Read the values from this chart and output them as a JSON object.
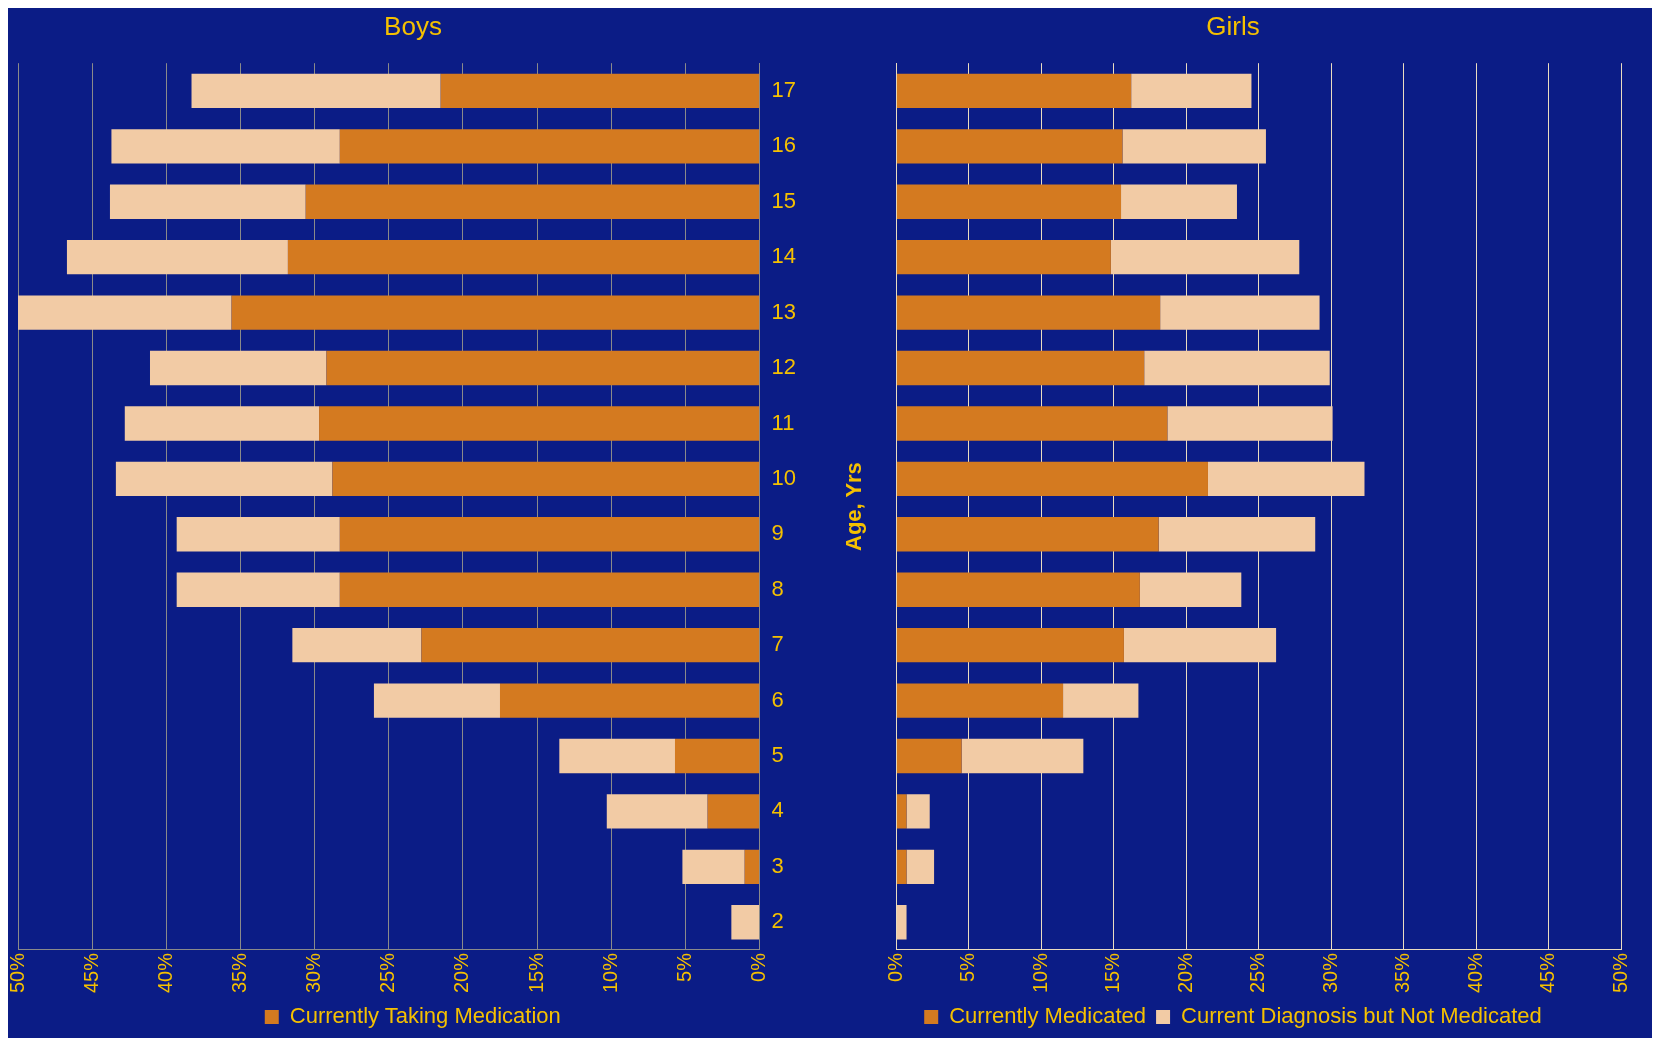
{
  "chart_data": [
    {
      "type": "bar",
      "title": "Boys",
      "orientation": "horizontal",
      "stacked": true,
      "categories": [
        "17",
        "16",
        "15",
        "14",
        "13",
        "12",
        "11",
        "10",
        "9",
        "8",
        "7",
        "6",
        "5",
        "4",
        "3",
        "2"
      ],
      "series": [
        {
          "name": "Currently Taking Medication",
          "color": "#d47a20",
          "values": [
            21.5,
            28.3,
            30.6,
            31.8,
            35.6,
            29.2,
            29.7,
            28.8,
            28.3,
            28.3,
            22.8,
            17.5,
            5.7,
            3.5,
            1.0,
            0
          ]
        },
        {
          "color": "#f2cba5",
          "values": [
            16.8,
            15.4,
            13.2,
            14.9,
            14.4,
            11.9,
            13.1,
            14.6,
            11.0,
            11.0,
            8.7,
            8.5,
            7.8,
            6.8,
            4.2,
            1.9
          ]
        }
      ],
      "xlim": [
        50,
        0
      ],
      "xticks": [
        {
          "value": 50,
          "label": "50%"
        },
        {
          "value": 45,
          "label": "45%"
        },
        {
          "value": 40,
          "label": "40%"
        },
        {
          "value": 35,
          "label": "35%"
        },
        {
          "value": 30,
          "label": "30%"
        },
        {
          "value": 25,
          "label": "25%"
        },
        {
          "value": 20,
          "label": "20%"
        },
        {
          "value": 15,
          "label": "15%"
        },
        {
          "value": 10,
          "label": "10%"
        },
        {
          "value": 5,
          "label": "5%"
        },
        {
          "value": 0,
          "label": "0%"
        }
      ],
      "grid": "x",
      "legend": "bottom"
    },
    {
      "type": "bar",
      "title": "Girls",
      "ylabel": "Age, Yrs",
      "orientation": "horizontal",
      "stacked": true,
      "categories": [
        null,
        null,
        null,
        null,
        null,
        null,
        null,
        null,
        null,
        null,
        null,
        null,
        null,
        null,
        null,
        null
      ],
      "series": [
        {
          "name": "Currently Medicated",
          "color": "#d47a20",
          "values": [
            16.2,
            15.6,
            15.5,
            14.8,
            18.2,
            17.1,
            18.7,
            21.5,
            18.1,
            16.8,
            15.7,
            11.5,
            4.5,
            0.7,
            0.7,
            0
          ]
        },
        {
          "name": "Current Diagnosis but Not Medicated",
          "color": "#f2cba5",
          "values": [
            8.3,
            9.9,
            8.0,
            13.0,
            11.0,
            12.8,
            11.4,
            10.8,
            10.8,
            7.0,
            10.5,
            5.2,
            8.4,
            1.6,
            1.9,
            0.7
          ]
        }
      ],
      "xlim": [
        0,
        50
      ],
      "xticks": [
        {
          "value": 0,
          "label": "0%"
        },
        {
          "value": 5,
          "label": "5%"
        },
        {
          "value": 10,
          "label": "10%"
        },
        {
          "value": 15,
          "label": "15%"
        },
        {
          "value": 20,
          "label": "20%"
        },
        {
          "value": 25,
          "label": "25%"
        },
        {
          "value": 30,
          "label": "30%"
        },
        {
          "value": 35,
          "label": "35%"
        },
        {
          "value": 40,
          "label": "40%"
        },
        {
          "value": 45,
          "label": "45%"
        },
        {
          "value": 50,
          "label": "50%"
        }
      ],
      "grid": "x",
      "legend": "bottom"
    }
  ]
}
